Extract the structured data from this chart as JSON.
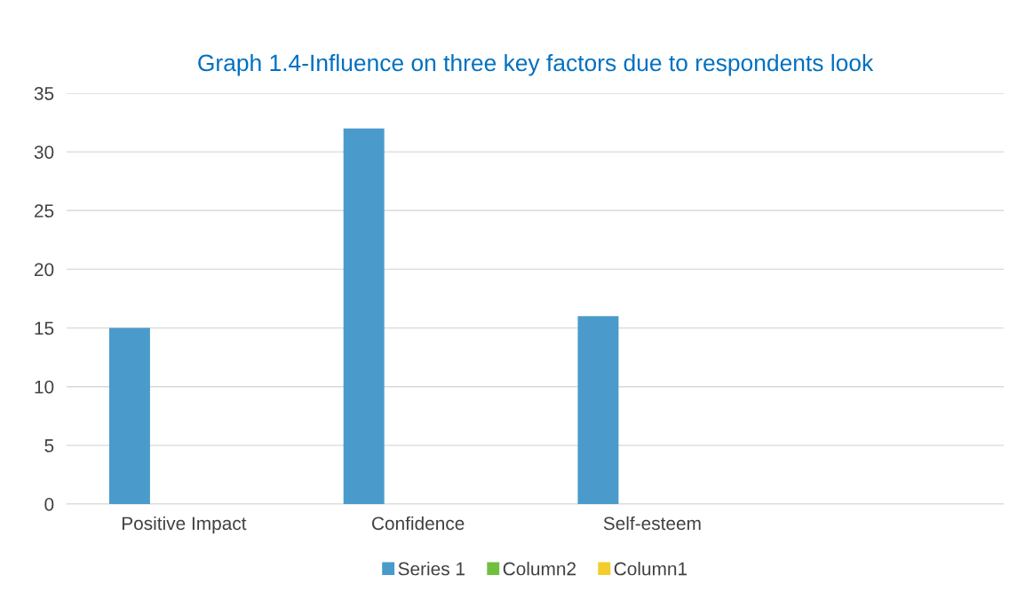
{
  "chart_data": {
    "type": "bar",
    "title": "Graph 1.4-Influence on three key factors due to respondents look",
    "categories": [
      "Positive Impact",
      "Confidence",
      "Self-esteem",
      null
    ],
    "series": [
      {
        "name": "Series 1",
        "color": "#4a9bcb",
        "values": [
          15,
          32,
          16,
          null
        ]
      },
      {
        "name": "Column2",
        "color": "#70bf41",
        "values": [
          null,
          null,
          null,
          null
        ]
      },
      {
        "name": "Column1",
        "color": "#f2cd2b",
        "values": [
          null,
          null,
          null,
          null
        ]
      }
    ],
    "ylim": [
      0,
      35
    ],
    "yticks": [
      0,
      5,
      10,
      15,
      20,
      25,
      30,
      35
    ],
    "grid": "y",
    "legend": "bottom"
  }
}
